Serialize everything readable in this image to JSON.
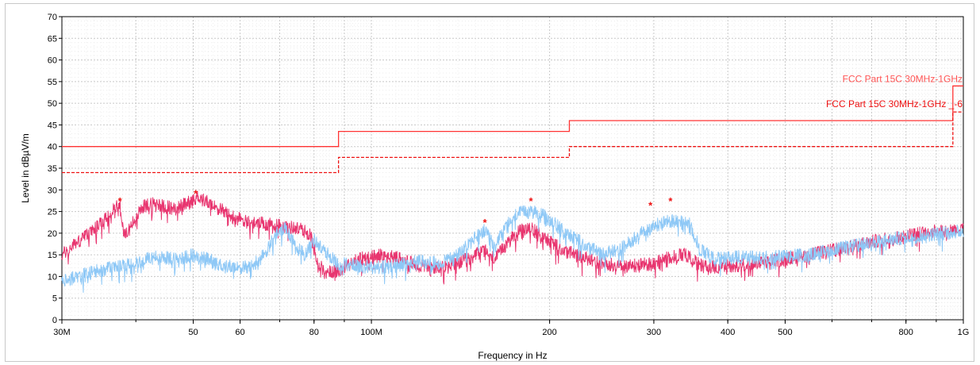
{
  "chart_data": {
    "type": "line",
    "xlabel": "Frequency in Hz",
    "ylabel": "Level in dBµV/m",
    "x_scale": "log",
    "xlim": [
      30000000,
      1000000000
    ],
    "ylim": [
      0,
      70
    ],
    "grid": true,
    "x_ticks": [
      {
        "value": 30000000,
        "label": "30M"
      },
      {
        "value": 50000000,
        "label": "50"
      },
      {
        "value": 60000000,
        "label": "60"
      },
      {
        "value": 80000000,
        "label": "80"
      },
      {
        "value": 100000000,
        "label": "100M"
      },
      {
        "value": 200000000,
        "label": "200"
      },
      {
        "value": 300000000,
        "label": "300"
      },
      {
        "value": 400000000,
        "label": "400"
      },
      {
        "value": 500000000,
        "label": "500"
      },
      {
        "value": 800000000,
        "label": "800"
      },
      {
        "value": 1000000000,
        "label": "1G"
      }
    ],
    "y_ticks": [
      0,
      5,
      10,
      15,
      20,
      25,
      30,
      35,
      40,
      45,
      50,
      55,
      60,
      65,
      70
    ],
    "limit_lines": [
      {
        "name": "FCC Part 15C 30MHz-1GHz",
        "color": "#ff3333",
        "dash": false,
        "label_color": "#ff5555",
        "points": [
          [
            30000000,
            40
          ],
          [
            88000000,
            40
          ],
          [
            88000000,
            43.5
          ],
          [
            216000000,
            43.5
          ],
          [
            216000000,
            46
          ],
          [
            960000000,
            46
          ],
          [
            960000000,
            54
          ],
          [
            1000000000,
            54
          ]
        ]
      },
      {
        "name": "FCC Part 15C 30MHz-1GHz _-6",
        "color": "#ee1111",
        "dash": true,
        "label_color": "#ee1111",
        "points": [
          [
            30000000,
            34
          ],
          [
            88000000,
            34
          ],
          [
            88000000,
            37.5
          ],
          [
            216000000,
            37.5
          ],
          [
            216000000,
            40
          ],
          [
            960000000,
            40
          ],
          [
            960000000,
            48
          ],
          [
            1000000000,
            48
          ]
        ]
      }
    ],
    "series": [
      {
        "color": "#e8356f",
        "noise": 1.6,
        "points": [
          [
            30000000,
            15
          ],
          [
            32000000,
            18
          ],
          [
            34000000,
            21
          ],
          [
            36000000,
            24
          ],
          [
            37000000,
            26
          ],
          [
            37600000,
            27
          ],
          [
            38200000,
            19
          ],
          [
            39000000,
            21
          ],
          [
            41000000,
            26
          ],
          [
            43000000,
            27
          ],
          [
            45000000,
            26
          ],
          [
            47000000,
            26
          ],
          [
            49000000,
            27
          ],
          [
            51000000,
            28.5
          ],
          [
            54000000,
            26.5
          ],
          [
            58000000,
            24
          ],
          [
            62000000,
            22.5
          ],
          [
            67000000,
            22
          ],
          [
            72000000,
            21.5
          ],
          [
            76000000,
            21
          ],
          [
            79000000,
            19.5
          ],
          [
            81000000,
            14
          ],
          [
            83000000,
            11
          ],
          [
            86000000,
            11
          ],
          [
            90000000,
            12
          ],
          [
            95000000,
            14
          ],
          [
            100000000,
            14.5
          ],
          [
            105000000,
            15
          ],
          [
            112000000,
            14
          ],
          [
            120000000,
            12.5
          ],
          [
            130000000,
            12
          ],
          [
            140000000,
            13
          ],
          [
            148000000,
            14.5
          ],
          [
            155000000,
            16
          ],
          [
            162000000,
            14
          ],
          [
            168000000,
            17
          ],
          [
            176000000,
            20
          ],
          [
            184000000,
            21.5
          ],
          [
            195000000,
            19.5
          ],
          [
            205000000,
            17
          ],
          [
            220000000,
            15
          ],
          [
            240000000,
            13.5
          ],
          [
            260000000,
            12.5
          ],
          [
            280000000,
            12.5
          ],
          [
            300000000,
            13
          ],
          [
            320000000,
            14.5
          ],
          [
            340000000,
            15
          ],
          [
            355000000,
            13
          ],
          [
            370000000,
            12
          ],
          [
            400000000,
            12.5
          ],
          [
            450000000,
            13
          ],
          [
            500000000,
            14
          ],
          [
            600000000,
            16
          ],
          [
            700000000,
            18
          ],
          [
            800000000,
            19.5
          ],
          [
            900000000,
            20.5
          ],
          [
            1000000000,
            21
          ]
        ]
      },
      {
        "color": "#8ec8f6",
        "noise": 1.6,
        "points": [
          [
            30000000,
            9
          ],
          [
            33000000,
            10.5
          ],
          [
            36000000,
            12
          ],
          [
            40000000,
            13
          ],
          [
            43000000,
            14.5
          ],
          [
            47000000,
            14
          ],
          [
            50000000,
            15
          ],
          [
            53000000,
            14
          ],
          [
            56000000,
            12.5
          ],
          [
            62000000,
            12
          ],
          [
            66000000,
            15
          ],
          [
            69000000,
            20
          ],
          [
            72000000,
            21
          ],
          [
            74000000,
            17.5
          ],
          [
            77000000,
            15
          ],
          [
            80000000,
            18.5
          ],
          [
            83000000,
            16
          ],
          [
            88000000,
            13
          ],
          [
            95000000,
            12.5
          ],
          [
            100000000,
            12
          ],
          [
            110000000,
            12.5
          ],
          [
            120000000,
            13.5
          ],
          [
            130000000,
            13
          ],
          [
            140000000,
            15
          ],
          [
            148000000,
            18.5
          ],
          [
            155000000,
            20.5
          ],
          [
            162000000,
            17
          ],
          [
            168000000,
            21
          ],
          [
            176000000,
            24.5
          ],
          [
            186000000,
            25
          ],
          [
            196000000,
            24
          ],
          [
            210000000,
            21
          ],
          [
            225000000,
            18
          ],
          [
            245000000,
            15
          ],
          [
            265000000,
            16.5
          ],
          [
            285000000,
            20
          ],
          [
            305000000,
            22
          ],
          [
            325000000,
            23
          ],
          [
            345000000,
            22
          ],
          [
            360000000,
            16
          ],
          [
            380000000,
            14
          ],
          [
            420000000,
            14.5
          ],
          [
            480000000,
            14.5
          ],
          [
            550000000,
            15
          ],
          [
            650000000,
            17
          ],
          [
            750000000,
            18.5
          ],
          [
            850000000,
            19.5
          ],
          [
            1000000000,
            20.5
          ]
        ]
      }
    ],
    "peaks": [
      {
        "x": 37600000,
        "y": 27.5
      },
      {
        "x": 50500000,
        "y": 29.2
      },
      {
        "x": 155500000,
        "y": 22.5
      },
      {
        "x": 186000000,
        "y": 27.5
      },
      {
        "x": 296000000,
        "y": 26.5
      },
      {
        "x": 320000000,
        "y": 27.5
      }
    ]
  }
}
